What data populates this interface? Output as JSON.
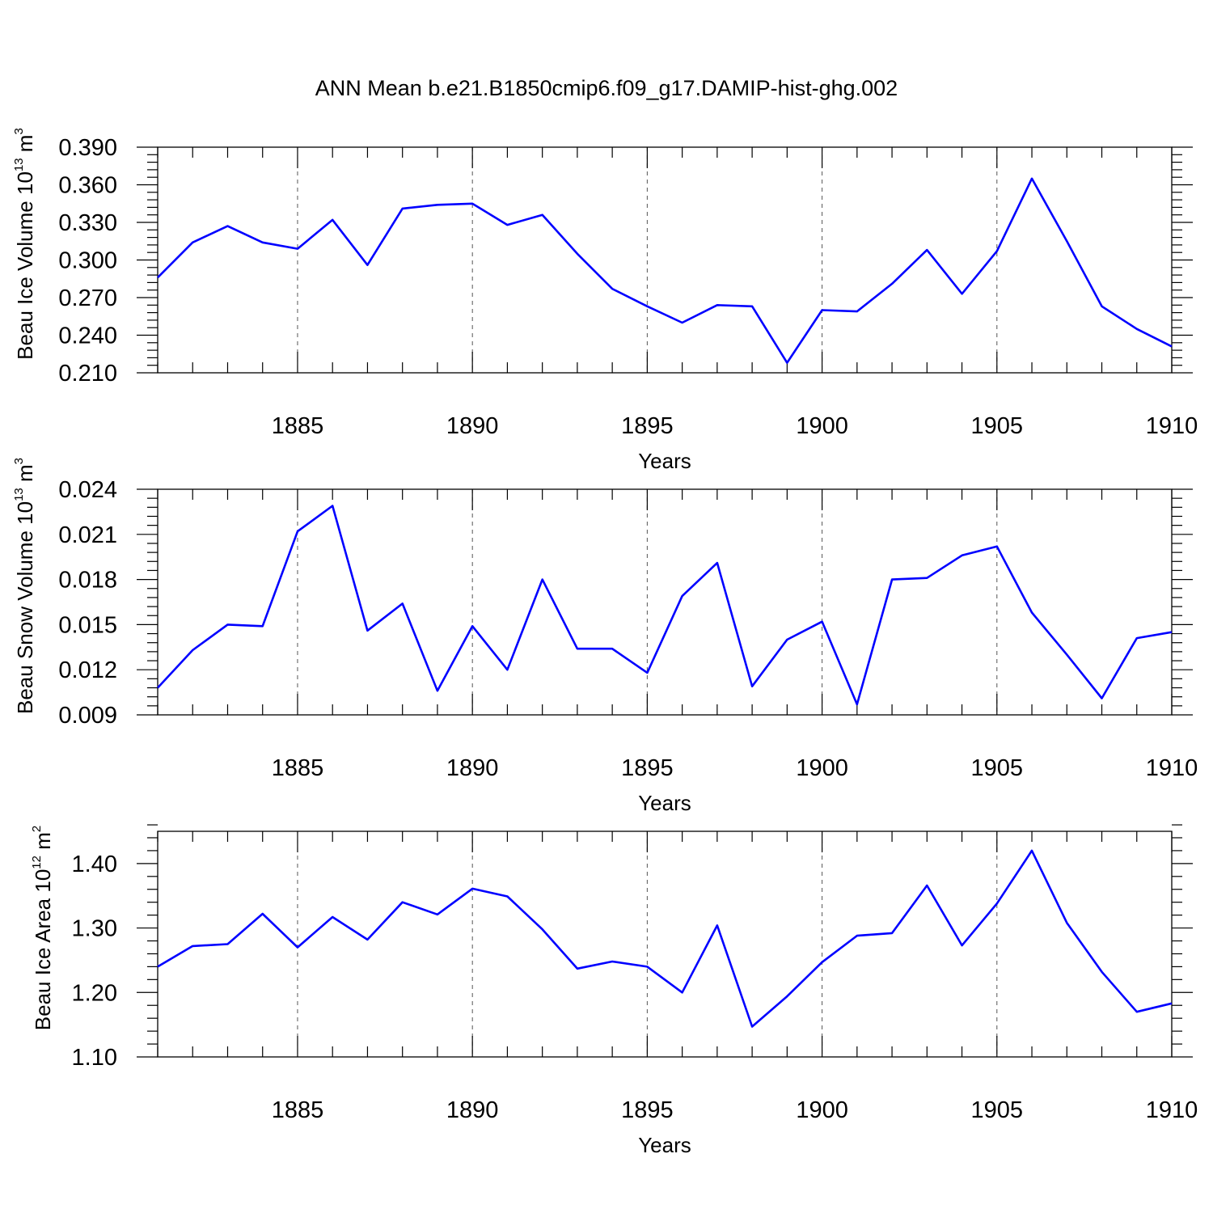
{
  "title": "ANN Mean b.e21.B1850cmip6.f09_g17.DAMIP-hist-ghg.002",
  "line_color": "#0000ff",
  "chart_data": [
    {
      "type": "line",
      "ylabel": "Beau Ice Volume",
      "yunit_base": "10",
      "yunit_exp": "13",
      "yunit_var": "m",
      "yunit_var_exp": "3",
      "xlabel": "Years",
      "xlim": [
        1881,
        1910
      ],
      "ylim": [
        0.21,
        0.39
      ],
      "xticks": [
        1885,
        1890,
        1895,
        1900,
        1905,
        1910
      ],
      "xtick_labels": [
        "1885",
        "1890",
        "1895",
        "1900",
        "1905",
        "1910"
      ],
      "yticks": [
        0.21,
        0.24,
        0.27,
        0.3,
        0.33,
        0.36,
        0.39
      ],
      "ytick_labels": [
        "0.210",
        "0.240",
        "0.270",
        "0.300",
        "0.330",
        "0.360",
        "0.390"
      ],
      "x": [
        1881,
        1882,
        1883,
        1884,
        1885,
        1886,
        1887,
        1888,
        1889,
        1890,
        1891,
        1892,
        1893,
        1894,
        1895,
        1896,
        1897,
        1898,
        1899,
        1900,
        1901,
        1902,
        1903,
        1904,
        1905,
        1906,
        1907,
        1908,
        1909,
        1910
      ],
      "y": [
        0.286,
        0.314,
        0.327,
        0.314,
        0.309,
        0.332,
        0.296,
        0.341,
        0.344,
        0.345,
        0.328,
        0.336,
        0.305,
        0.277,
        0.263,
        0.25,
        0.264,
        0.263,
        0.218,
        0.26,
        0.259,
        0.281,
        0.308,
        0.273,
        0.307,
        0.365,
        0.315,
        0.263,
        0.245,
        0.231
      ],
      "grid": "dashed verticals at labeled years"
    },
    {
      "type": "line",
      "ylabel": "Beau Snow Volume",
      "yunit_base": "10",
      "yunit_exp": "13",
      "yunit_var": "m",
      "yunit_var_exp": "3",
      "xlabel": "Years",
      "xlim": [
        1881,
        1910
      ],
      "ylim": [
        0.009,
        0.024
      ],
      "xticks": [
        1885,
        1890,
        1895,
        1900,
        1905,
        1910
      ],
      "xtick_labels": [
        "1885",
        "1890",
        "1895",
        "1900",
        "1905",
        "1910"
      ],
      "yticks": [
        0.009,
        0.012,
        0.015,
        0.018,
        0.021,
        0.024
      ],
      "ytick_labels": [
        "0.009",
        "0.012",
        "0.015",
        "0.018",
        "0.021",
        "0.024"
      ],
      "x": [
        1881,
        1882,
        1883,
        1884,
        1885,
        1886,
        1887,
        1888,
        1889,
        1890,
        1891,
        1892,
        1893,
        1894,
        1895,
        1896,
        1897,
        1898,
        1899,
        1900,
        1901,
        1902,
        1903,
        1904,
        1905,
        1906,
        1907,
        1908,
        1909,
        1910
      ],
      "y": [
        0.0108,
        0.0133,
        0.015,
        0.0149,
        0.0212,
        0.0229,
        0.0146,
        0.0164,
        0.0106,
        0.0149,
        0.012,
        0.018,
        0.0134,
        0.0134,
        0.0118,
        0.0169,
        0.0191,
        0.0109,
        0.014,
        0.0152,
        0.0097,
        0.018,
        0.0181,
        0.0196,
        0.0202,
        0.0158,
        0.013,
        0.0101,
        0.0141,
        0.0145
      ],
      "grid": "dashed verticals at labeled years"
    },
    {
      "type": "line",
      "ylabel": "Beau Ice Area",
      "yunit_base": "10",
      "yunit_exp": "12",
      "yunit_var": "m",
      "yunit_var_exp": "2",
      "xlabel": "Years",
      "xlim": [
        1881,
        1910
      ],
      "ylim": [
        1.1,
        1.45
      ],
      "xticks": [
        1885,
        1890,
        1895,
        1900,
        1905,
        1910
      ],
      "xtick_labels": [
        "1885",
        "1890",
        "1895",
        "1900",
        "1905",
        "1910"
      ],
      "yticks": [
        1.1,
        1.2,
        1.3,
        1.4
      ],
      "ytick_labels": [
        "1.10",
        "1.20",
        "1.30",
        "1.40"
      ],
      "x": [
        1881,
        1882,
        1883,
        1884,
        1885,
        1886,
        1887,
        1888,
        1889,
        1890,
        1891,
        1892,
        1893,
        1894,
        1895,
        1896,
        1897,
        1898,
        1899,
        1900,
        1901,
        1902,
        1903,
        1904,
        1905,
        1906,
        1907,
        1908,
        1909,
        1910
      ],
      "y": [
        1.24,
        1.272,
        1.275,
        1.322,
        1.27,
        1.317,
        1.282,
        1.34,
        1.321,
        1.361,
        1.349,
        1.298,
        1.237,
        1.248,
        1.24,
        1.2,
        1.304,
        1.147,
        1.194,
        1.247,
        1.288,
        1.292,
        1.366,
        1.273,
        1.338,
        1.42,
        1.308,
        1.232,
        1.17,
        1.183
      ],
      "grid": "dashed verticals at labeled years"
    }
  ]
}
